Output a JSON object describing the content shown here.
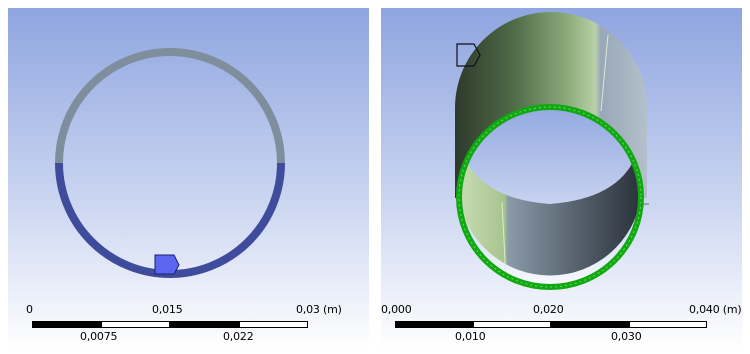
{
  "viewports": [
    {
      "id": "left",
      "description_scale": "2D ring cross-section",
      "scale_bar": {
        "top_labels": [
          "0",
          "0,015",
          "0,03 (m)"
        ],
        "bottom_labels": [
          "0,0075",
          "0,022"
        ]
      }
    },
    {
      "id": "right",
      "description_scale": "3D hollow cylinder with highlighted edge",
      "scale_bar": {
        "top_labels": [
          "0,000",
          "0,020",
          "0,040 (m)"
        ],
        "bottom_labels": [
          "0,010",
          "0,030"
        ]
      }
    }
  ],
  "colors": {
    "background_top": "#8fa5e0",
    "background_bottom": "#ffffff",
    "ring_upper": "#7f8e9c",
    "ring_lower": "#3f4c9c",
    "selection_marker": "#5a66f0",
    "edge_highlight": "#12a812"
  }
}
